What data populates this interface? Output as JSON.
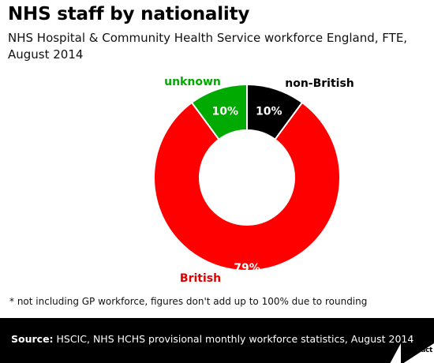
{
  "header": {
    "title": "NHS staff by nationality",
    "subtitle": "NHS Hospital & Community Health Service workforce England, FTE, August 2014"
  },
  "chart_data": {
    "type": "pie",
    "title": "NHS staff by nationality",
    "subtitle": "NHS Hospital & Community Health Service workforce England, FTE, August 2014",
    "donut": true,
    "slices": [
      {
        "label": "non-British",
        "value": 10,
        "display": "10%",
        "color": "#000000",
        "label_color": "#000000"
      },
      {
        "label": "British",
        "value": 79,
        "display": "79%",
        "color": "#ff0000",
        "label_color": "#e00000"
      },
      {
        "label": "unknown",
        "value": 10,
        "display": "10%",
        "color": "#00aa00",
        "label_color": "#00aa00"
      }
    ]
  },
  "footnote": "* not including GP workforce, figures don't add up to 100% due to rounding",
  "footer": {
    "source_label": "Source:",
    "source_text": " HSCIC, NHS HCHS provisional monthly workforce statistics, August 2014",
    "logo_text": "Full Fact",
    "background": "#000000"
  }
}
